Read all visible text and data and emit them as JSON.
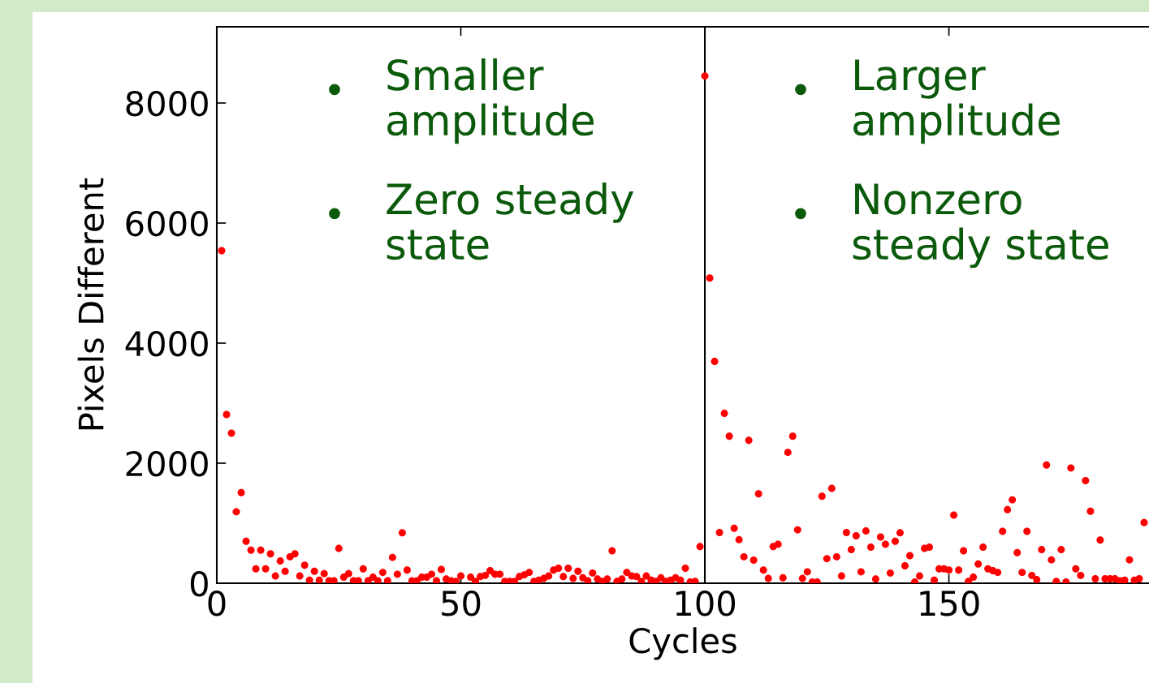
{
  "chart_data": {
    "type": "scatter",
    "xlabel": "Cycles",
    "ylabel": "Pixels Different",
    "xlim": [
      0,
      191
    ],
    "ylim": [
      0,
      9270
    ],
    "xticks": [
      0,
      50,
      100,
      150
    ],
    "yticks": [
      0,
      2000,
      4000,
      6000,
      8000
    ],
    "grid": false,
    "legend": false,
    "marker": "circle",
    "ref_lines": [
      {
        "axis": "x",
        "value": 100,
        "color": "#000000"
      }
    ],
    "annotations": [
      "• Smaller\namplitude",
      "• Zero steady\nstate",
      "• Larger\namplitude",
      "• Nonzero\nsteady state"
    ],
    "series": [
      {
        "color": "#ff0000",
        "x": [
          1,
          2,
          3,
          4,
          5,
          6,
          7,
          8,
          9,
          10,
          11,
          12,
          13,
          14,
          15,
          16,
          17,
          18,
          19,
          20,
          21,
          22,
          23,
          24,
          25,
          26,
          27,
          28,
          29,
          30,
          31,
          32,
          33,
          34,
          35,
          36,
          37,
          38,
          39,
          40,
          41,
          42,
          43,
          44,
          45,
          46,
          47,
          48,
          49,
          50,
          52,
          53,
          54,
          55,
          56,
          57,
          58,
          59,
          60,
          61,
          62,
          63,
          64,
          65,
          66,
          67,
          68,
          69,
          70,
          71,
          72,
          73,
          74,
          75,
          76,
          77,
          78,
          79,
          80,
          81,
          82,
          83,
          84,
          85,
          86,
          87,
          88,
          89,
          90,
          91,
          92,
          93,
          94,
          95,
          96,
          97,
          98,
          99,
          100,
          101,
          102,
          103,
          104,
          105,
          106,
          107,
          108,
          109,
          110,
          111,
          112,
          113,
          114,
          115,
          116,
          117,
          118,
          119,
          120,
          121,
          122,
          123,
          124,
          125,
          126,
          127,
          128,
          129,
          130,
          131,
          132,
          133,
          134,
          135,
          136,
          137,
          138,
          139,
          140,
          141,
          142,
          143,
          144,
          145,
          146,
          147,
          148,
          149,
          150,
          151,
          152,
          153,
          154,
          155,
          156,
          157,
          158,
          159,
          160,
          161,
          162,
          163,
          164,
          165,
          166,
          167,
          168,
          169,
          170,
          171,
          172,
          173,
          174,
          175,
          176,
          177,
          178,
          179,
          180,
          181,
          182,
          183,
          184,
          185,
          186,
          187,
          188,
          189,
          190
        ],
        "values": [
          5540,
          2810,
          2500,
          1190,
          1510,
          700,
          550,
          240,
          550,
          240,
          490,
          120,
          370,
          200,
          440,
          490,
          120,
          300,
          50,
          200,
          50,
          160,
          40,
          40,
          580,
          100,
          160,
          40,
          40,
          240,
          40,
          100,
          40,
          180,
          40,
          430,
          150,
          840,
          220,
          40,
          40,
          100,
          100,
          150,
          40,
          230,
          70,
          40,
          30,
          120,
          100,
          30,
          110,
          130,
          210,
          150,
          150,
          30,
          30,
          30,
          110,
          140,
          180,
          30,
          50,
          80,
          120,
          220,
          250,
          110,
          250,
          80,
          200,
          90,
          40,
          170,
          70,
          30,
          70,
          540,
          30,
          70,
          180,
          120,
          110,
          30,
          120,
          50,
          30,
          90,
          30,
          50,
          90,
          50,
          250,
          20,
          30,
          610,
          8450,
          5085,
          3695,
          845,
          2830,
          2450,
          915,
          725,
          440,
          2380,
          385,
          1490,
          220,
          80,
          610,
          650,
          90,
          2180,
          2450,
          890,
          80,
          190,
          20,
          20,
          1450,
          410,
          1580,
          440,
          120,
          845,
          560,
          790,
          190,
          870,
          600,
          70,
          770,
          650,
          170,
          700,
          840,
          290,
          460,
          20,
          120,
          580,
          600,
          50,
          240,
          240,
          220,
          1135,
          220,
          540,
          30,
          100,
          320,
          600,
          240,
          210,
          180,
          865,
          1225,
          1390,
          510,
          180,
          865,
          130,
          60,
          560,
          1970,
          390,
          30,
          560,
          20,
          1920,
          240,
          130,
          1710,
          1200,
          75,
          720,
          75,
          75,
          75,
          40,
          50,
          390,
          50,
          75,
          1010
        ]
      }
    ]
  }
}
